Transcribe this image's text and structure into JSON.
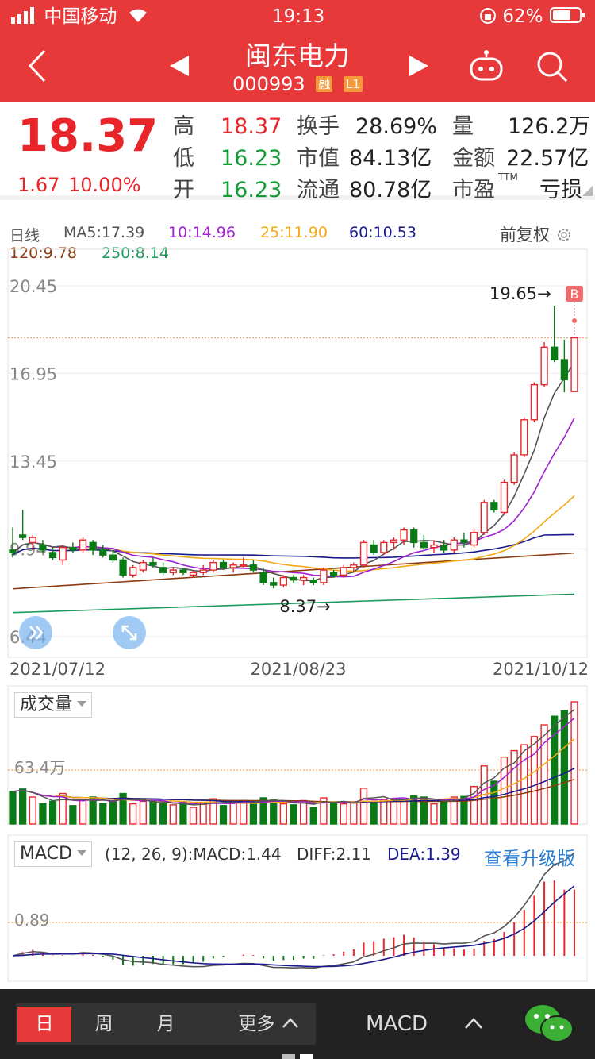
{
  "status_bar": {
    "carrier": "中国移动",
    "time": "19:13",
    "battery": "62%"
  },
  "header": {
    "title": "闽东电力",
    "code": "000993",
    "tag_margin": "融",
    "tag_level": "L1"
  },
  "quote": {
    "price": "18.37",
    "change": "1.67",
    "change_pct": "10.00%",
    "high_label": "高",
    "high": "18.37",
    "low_label": "低",
    "low": "16.23",
    "open_label": "开",
    "open": "16.23",
    "turnover_label": "换手",
    "turnover": "28.69%",
    "mktcap_label": "市值",
    "mktcap": "84.13亿",
    "float_label": "流通",
    "float": "80.78亿",
    "volume_label": "量",
    "volume": "126.2万",
    "amount_label": "金额",
    "amount": "22.57亿",
    "pe_label": "市盈",
    "pe_tm": "TTM",
    "pe": "亏损"
  },
  "kline": {
    "period_label": "日线",
    "ma5": "MA5:17.39",
    "ma10": "10:14.96",
    "ma25": "25:11.90",
    "ma60": "60:10.53",
    "ma120": "120:9.78",
    "ma250": "250:8.14",
    "adjust_label": "前复权",
    "y_labels": [
      "20.45",
      "16.95",
      "13.45",
      "9.94",
      "6.44"
    ],
    "x_labels": [
      "2021/07/12",
      "2021/08/23",
      "2021/10/12"
    ],
    "max_annotation": "19.65→",
    "min_annotation": "8.37→",
    "b_marker": "B"
  },
  "volume_panel": {
    "selector": "成交量",
    "y_label": "63.4万"
  },
  "macd_panel": {
    "selector": "MACD",
    "params": "(12, 26, 9):MACD:1.44",
    "diff": "DIFF:2.11",
    "dea": "DEA:1.39",
    "upgrade_link": "查看升级版",
    "y_label": "0.89"
  },
  "bottom_bar": {
    "tab_day": "日",
    "tab_week": "周",
    "tab_month": "月",
    "tab_more": "更多",
    "indicator": "MACD"
  },
  "colors": {
    "up": "#e8262a",
    "down": "#0a7a16",
    "accent": "#e8393a",
    "ma5": "#555555",
    "ma10": "#a020d0",
    "ma25": "#f4a818",
    "ma60": "#1a1a8c",
    "ma120": "#8b3a0f",
    "ma250": "#1a9a5a"
  },
  "chart_data": {
    "type": "candlestick",
    "x": [
      "2021/07/12",
      "2021/08/23",
      "2021/10/12"
    ],
    "ohlc": [
      [
        9.9,
        10.8,
        9.6,
        9.8
      ],
      [
        10.5,
        11.5,
        10.3,
        10.4
      ],
      [
        10.2,
        10.5,
        9.9,
        10.4
      ],
      [
        10.1,
        10.3,
        9.8,
        9.9
      ],
      [
        9.8,
        10.0,
        9.5,
        9.6
      ],
      [
        9.5,
        10.1,
        9.3,
        10.0
      ],
      [
        10.0,
        10.2,
        9.8,
        9.9
      ],
      [
        9.9,
        10.4,
        9.8,
        10.3
      ],
      [
        10.2,
        10.3,
        9.7,
        9.9
      ],
      [
        9.9,
        10.1,
        9.6,
        9.7
      ],
      [
        9.7,
        9.9,
        9.4,
        9.5
      ],
      [
        9.5,
        9.6,
        8.8,
        8.9
      ],
      [
        8.9,
        9.3,
        8.8,
        9.2
      ],
      [
        9.1,
        9.5,
        9.0,
        9.4
      ],
      [
        9.4,
        9.6,
        9.2,
        9.3
      ],
      [
        9.2,
        9.4,
        8.9,
        9.0
      ],
      [
        9.0,
        9.2,
        8.9,
        9.1
      ],
      [
        9.1,
        9.2,
        8.9,
        9.0
      ],
      [
        8.9,
        9.1,
        8.8,
        9.0
      ],
      [
        9.0,
        9.3,
        8.9,
        9.1
      ],
      [
        9.1,
        9.5,
        9.0,
        9.4
      ],
      [
        9.4,
        9.5,
        9.1,
        9.2
      ],
      [
        9.2,
        9.4,
        9.0,
        9.3
      ],
      [
        9.3,
        9.6,
        9.2,
        9.3
      ],
      [
        9.3,
        9.5,
        9.0,
        9.1
      ],
      [
        9.0,
        9.2,
        8.5,
        8.6
      ],
      [
        8.6,
        8.8,
        8.37,
        8.5
      ],
      [
        8.5,
        8.9,
        8.4,
        8.8
      ],
      [
        8.8,
        8.9,
        8.6,
        8.7
      ],
      [
        8.7,
        8.9,
        8.5,
        8.8
      ],
      [
        8.7,
        8.8,
        8.5,
        8.6
      ],
      [
        8.6,
        9.2,
        8.5,
        9.1
      ],
      [
        9.0,
        9.1,
        8.8,
        8.9
      ],
      [
        8.9,
        9.3,
        8.8,
        9.2
      ],
      [
        9.2,
        9.4,
        9.0,
        9.3
      ],
      [
        9.3,
        10.3,
        9.2,
        10.2
      ],
      [
        10.1,
        10.3,
        9.7,
        9.8
      ],
      [
        9.8,
        10.3,
        9.7,
        10.2
      ],
      [
        10.2,
        10.4,
        9.9,
        10.3
      ],
      [
        10.3,
        10.8,
        10.1,
        10.7
      ],
      [
        10.7,
        10.8,
        10.0,
        10.2
      ],
      [
        10.2,
        10.5,
        9.9,
        10.0
      ],
      [
        10.0,
        10.3,
        9.8,
        10.1
      ],
      [
        10.1,
        10.3,
        9.8,
        9.9
      ],
      [
        9.9,
        10.4,
        9.8,
        10.3
      ],
      [
        10.3,
        10.6,
        10.0,
        10.2
      ],
      [
        10.1,
        10.7,
        10.0,
        10.6
      ],
      [
        10.6,
        11.9,
        10.5,
        11.8
      ],
      [
        11.8,
        11.9,
        11.4,
        11.5
      ],
      [
        11.4,
        12.7,
        11.3,
        12.6
      ],
      [
        12.6,
        13.8,
        12.5,
        13.7
      ],
      [
        13.7,
        15.2,
        13.6,
        15.1
      ],
      [
        15.1,
        16.6,
        15.0,
        16.5
      ],
      [
        16.5,
        18.2,
        16.4,
        18.0
      ],
      [
        18.0,
        19.65,
        17.4,
        17.5
      ],
      [
        17.5,
        18.3,
        16.2,
        16.7
      ],
      [
        16.23,
        18.37,
        16.23,
        18.37
      ]
    ],
    "volume_label": "63.4万",
    "macd": {
      "dif": 2.11,
      "dea": 1.39,
      "macd": 1.44
    }
  }
}
